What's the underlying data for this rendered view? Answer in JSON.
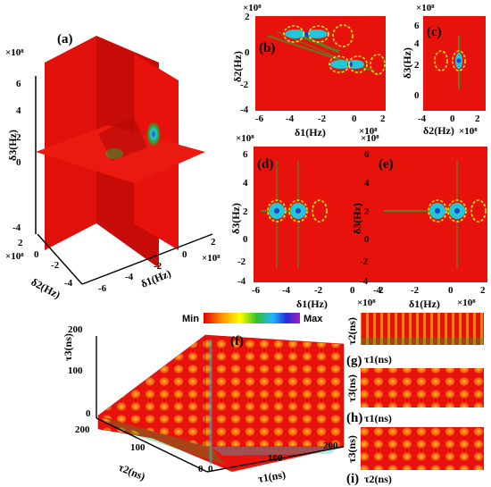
{
  "chart_data": [
    {
      "type": "heatmap",
      "panel": "(a)",
      "xlabel": "δ1(Hz)",
      "ylabel": "δ2(Hz)",
      "zlabel": "δ3(Hz)",
      "x_ticks": [
        "-6",
        "-4",
        "-2",
        "0",
        "2"
      ],
      "y_ticks": [
        "-4",
        "-2",
        "0",
        "2"
      ],
      "z_ticks": [
        "-4",
        "0",
        "2",
        "4",
        "6"
      ],
      "scale_x": "×10⁸",
      "scale_y": "×10⁸",
      "scale_z": "×10⁸"
    },
    {
      "type": "heatmap",
      "panel": "(b)",
      "xlabel": "δ1(Hz)",
      "ylabel": "δ2(Hz)",
      "x_ticks": [
        "-6",
        "-4",
        "-2",
        "0",
        "2"
      ],
      "y_ticks": [
        "2",
        "0",
        "-2",
        "-4"
      ],
      "xlim": [
        -6,
        2
      ],
      "ylim": [
        -4,
        2
      ],
      "scale_x": "×10⁸",
      "scale_y": "×10⁸"
    },
    {
      "type": "heatmap",
      "panel": "(c)",
      "xlabel": "δ2(Hz)",
      "ylabel": "δ3(Hz)",
      "x_ticks": [
        "-4",
        "0",
        "2"
      ],
      "y_ticks": [
        "6",
        "4",
        "2",
        "0"
      ],
      "xlim": [
        -4,
        2
      ],
      "ylim": [
        -1,
        6
      ],
      "scale_x": "×10⁸",
      "scale_y": "×10⁸"
    },
    {
      "type": "heatmap",
      "panel": "(d)",
      "xlabel": "δ1(Hz)",
      "ylabel": "δ3(Hz)",
      "x_ticks": [
        "-6",
        "-4",
        "-2",
        "0",
        "2"
      ],
      "y_ticks": [
        "6",
        "4",
        "2",
        "0",
        "-2",
        "-4"
      ],
      "xlim": [
        -6,
        2
      ],
      "ylim": [
        -4,
        6
      ],
      "scale_x": "×10⁸",
      "scale_y": "×10⁸"
    },
    {
      "type": "heatmap",
      "panel": "(e)",
      "xlabel": "δ1(Hz)",
      "ylabel": "δ3(Hz)",
      "x_ticks": [
        "-4",
        "-2",
        "0",
        "2"
      ],
      "y_ticks": [
        "6",
        "4",
        "2",
        "0",
        "-2",
        "-4"
      ],
      "xlim": [
        -4,
        2
      ],
      "ylim": [
        -4,
        6
      ],
      "scale_x": "×10⁸",
      "scale_y": "×10⁸"
    },
    {
      "type": "heatmap",
      "panel": "(f)",
      "xlabel": "τ1(ns)",
      "ylabel": "τ2(ns)",
      "zlabel": "τ3(ns)",
      "x_ticks": [
        "0",
        "100",
        "200"
      ],
      "y_ticks": [
        "200",
        "100",
        "0"
      ],
      "z_ticks": [
        "200",
        "100",
        "0"
      ],
      "colorbar": {
        "min_label": "Min",
        "max_label": "Max"
      }
    },
    {
      "type": "heatmap",
      "panel": "(g)",
      "xlabel": "τ1(ns)",
      "ylabel": "τ2(ns)"
    },
    {
      "type": "heatmap",
      "panel": "(h)",
      "xlabel": "τ1(ns)",
      "ylabel": "τ3(ns)"
    },
    {
      "type": "heatmap",
      "panel": "(i)",
      "xlabel": "τ2(ns)",
      "ylabel": "τ3(ns)"
    }
  ],
  "colors": {
    "background_red": "#e8120c",
    "dark_red": "#c40a06",
    "peak_green": "#2fa12a",
    "peak_cyan": "#23c6d6",
    "peak_blue": "#2040d0",
    "ellipse_yellow": "#f4e600"
  }
}
